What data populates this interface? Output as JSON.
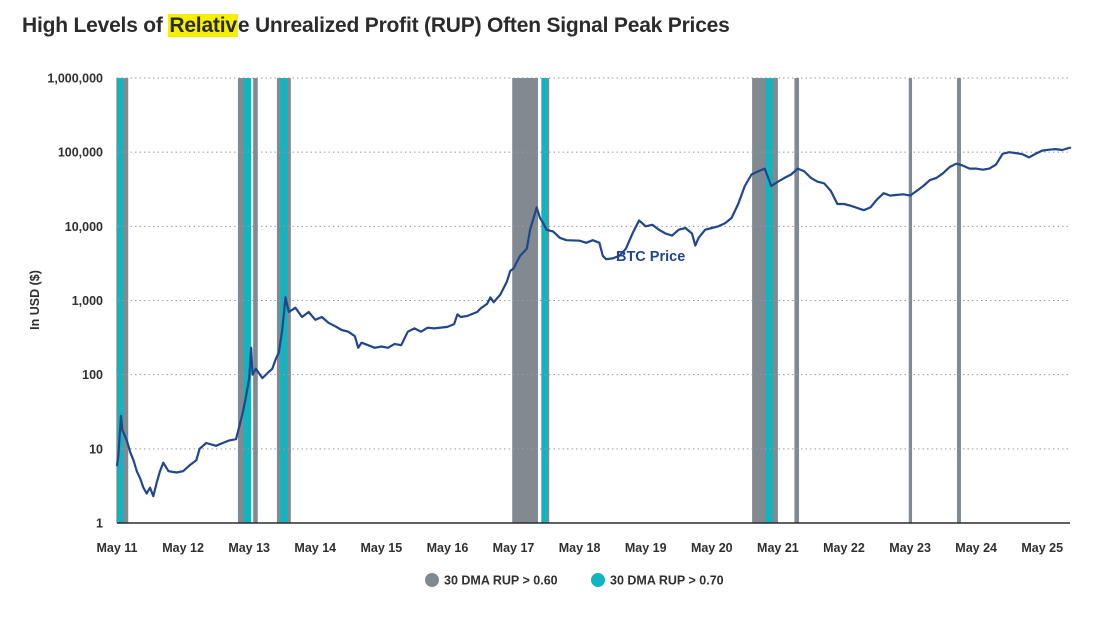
{
  "title": {
    "before": "High Levels of ",
    "highlight": "Relativ",
    "after": "e Unrealized Profit (RUP) Often Signal Peak Prices"
  },
  "chart_data": {
    "type": "line",
    "yscale": "log",
    "ylim": [
      1,
      1000000
    ],
    "xlim": [
      2011.0,
      2025.42
    ],
    "ylabel": "In USD ($)",
    "xlabel": "",
    "grid": true,
    "y_ticks": [
      {
        "value": 1,
        "label": "1"
      },
      {
        "value": 10,
        "label": "10"
      },
      {
        "value": 100,
        "label": "100"
      },
      {
        "value": 1000,
        "label": "1,000"
      },
      {
        "value": 10000,
        "label": "10,000"
      },
      {
        "value": 100000,
        "label": "100,000"
      },
      {
        "value": 1000000,
        "label": "1,000,000"
      }
    ],
    "x_ticks": [
      {
        "value": 2011.0,
        "label": "May 11"
      },
      {
        "value": 2012.0,
        "label": "May 12"
      },
      {
        "value": 2013.0,
        "label": "May 13"
      },
      {
        "value": 2014.0,
        "label": "May 14"
      },
      {
        "value": 2015.0,
        "label": "May 15"
      },
      {
        "value": 2016.0,
        "label": "May 16"
      },
      {
        "value": 2017.0,
        "label": "May 17"
      },
      {
        "value": 2018.0,
        "label": "May 18"
      },
      {
        "value": 2019.0,
        "label": "May 19"
      },
      {
        "value": 2020.0,
        "label": "May 20"
      },
      {
        "value": 2021.0,
        "label": "May 21"
      },
      {
        "value": 2022.0,
        "label": "May 22"
      },
      {
        "value": 2023.0,
        "label": "May 23"
      },
      {
        "value": 2024.0,
        "label": "May 24"
      },
      {
        "value": 2025.0,
        "label": "May 25"
      }
    ],
    "series": [
      {
        "name": "BTC Price",
        "color": "#20468c",
        "points": [
          [
            2011.0,
            6
          ],
          [
            2011.02,
            8
          ],
          [
            2011.04,
            15
          ],
          [
            2011.06,
            28
          ],
          [
            2011.08,
            18
          ],
          [
            2011.12,
            15
          ],
          [
            2011.16,
            12
          ],
          [
            2011.2,
            9
          ],
          [
            2011.25,
            7
          ],
          [
            2011.3,
            5
          ],
          [
            2011.35,
            4
          ],
          [
            2011.4,
            3
          ],
          [
            2011.45,
            2.5
          ],
          [
            2011.5,
            3
          ],
          [
            2011.55,
            2.3
          ],
          [
            2011.6,
            3.5
          ],
          [
            2011.65,
            5
          ],
          [
            2011.7,
            6.5
          ],
          [
            2011.78,
            5
          ],
          [
            2011.9,
            4.8
          ],
          [
            2012.0,
            5
          ],
          [
            2012.1,
            6
          ],
          [
            2012.2,
            7
          ],
          [
            2012.25,
            10
          ],
          [
            2012.35,
            12
          ],
          [
            2012.5,
            11
          ],
          [
            2012.6,
            12
          ],
          [
            2012.7,
            13
          ],
          [
            2012.8,
            13.5
          ],
          [
            2012.85,
            20
          ],
          [
            2012.9,
            30
          ],
          [
            2012.95,
            50
          ],
          [
            2013.0,
            90
          ],
          [
            2013.03,
            230
          ],
          [
            2013.05,
            100
          ],
          [
            2013.1,
            120
          ],
          [
            2013.2,
            90
          ],
          [
            2013.3,
            110
          ],
          [
            2013.35,
            120
          ],
          [
            2013.4,
            160
          ],
          [
            2013.45,
            200
          ],
          [
            2013.5,
            400
          ],
          [
            2013.55,
            1100
          ],
          [
            2013.6,
            700
          ],
          [
            2013.7,
            800
          ],
          [
            2013.8,
            600
          ],
          [
            2013.9,
            700
          ],
          [
            2014.0,
            550
          ],
          [
            2014.1,
            600
          ],
          [
            2014.2,
            500
          ],
          [
            2014.3,
            450
          ],
          [
            2014.4,
            400
          ],
          [
            2014.5,
            380
          ],
          [
            2014.6,
            330
          ],
          [
            2014.65,
            230
          ],
          [
            2014.7,
            270
          ],
          [
            2014.8,
            250
          ],
          [
            2014.9,
            230
          ],
          [
            2015.0,
            240
          ],
          [
            2015.1,
            230
          ],
          [
            2015.2,
            260
          ],
          [
            2015.3,
            250
          ],
          [
            2015.4,
            380
          ],
          [
            2015.5,
            420
          ],
          [
            2015.6,
            380
          ],
          [
            2015.7,
            430
          ],
          [
            2015.8,
            420
          ],
          [
            2016.0,
            440
          ],
          [
            2016.1,
            480
          ],
          [
            2016.15,
            650
          ],
          [
            2016.2,
            600
          ],
          [
            2016.3,
            620
          ],
          [
            2016.45,
            700
          ],
          [
            2016.5,
            780
          ],
          [
            2016.6,
            900
          ],
          [
            2016.65,
            1100
          ],
          [
            2016.7,
            950
          ],
          [
            2016.8,
            1200
          ],
          [
            2016.9,
            1800
          ],
          [
            2016.95,
            2500
          ],
          [
            2017.0,
            2700
          ],
          [
            2017.1,
            4000
          ],
          [
            2017.2,
            5000
          ],
          [
            2017.25,
            9000
          ],
          [
            2017.35,
            18000
          ],
          [
            2017.4,
            13000
          ],
          [
            2017.45,
            11000
          ],
          [
            2017.5,
            9000
          ],
          [
            2017.6,
            8500
          ],
          [
            2017.7,
            7000
          ],
          [
            2017.8,
            6500
          ],
          [
            2018.0,
            6400
          ],
          [
            2018.1,
            6000
          ],
          [
            2018.2,
            6500
          ],
          [
            2018.3,
            6000
          ],
          [
            2018.35,
            4000
          ],
          [
            2018.4,
            3600
          ],
          [
            2018.5,
            3700
          ],
          [
            2018.6,
            4000
          ],
          [
            2018.7,
            5000
          ],
          [
            2018.8,
            8000
          ],
          [
            2018.9,
            12000
          ],
          [
            2019.0,
            10000
          ],
          [
            2019.1,
            10500
          ],
          [
            2019.2,
            9000
          ],
          [
            2019.3,
            8000
          ],
          [
            2019.4,
            7500
          ],
          [
            2019.5,
            9000
          ],
          [
            2019.6,
            9500
          ],
          [
            2019.7,
            8000
          ],
          [
            2019.75,
            5500
          ],
          [
            2019.8,
            7000
          ],
          [
            2019.9,
            9000
          ],
          [
            2020.0,
            9500
          ],
          [
            2020.1,
            10000
          ],
          [
            2020.2,
            11000
          ],
          [
            2020.3,
            13000
          ],
          [
            2020.4,
            20000
          ],
          [
            2020.5,
            35000
          ],
          [
            2020.6,
            50000
          ],
          [
            2020.7,
            55000
          ],
          [
            2020.8,
            60000
          ],
          [
            2020.9,
            35000
          ],
          [
            2021.0,
            40000
          ],
          [
            2021.1,
            45000
          ],
          [
            2021.2,
            50000
          ],
          [
            2021.3,
            60000
          ],
          [
            2021.4,
            55000
          ],
          [
            2021.5,
            45000
          ],
          [
            2021.6,
            40000
          ],
          [
            2021.7,
            38000
          ],
          [
            2021.8,
            30000
          ],
          [
            2021.9,
            20000
          ],
          [
            2022.0,
            20000
          ],
          [
            2022.1,
            19000
          ],
          [
            2022.3,
            16500
          ],
          [
            2022.4,
            18000
          ],
          [
            2022.5,
            23000
          ],
          [
            2022.6,
            28000
          ],
          [
            2022.7,
            26000
          ],
          [
            2022.8,
            26500
          ],
          [
            2022.9,
            27000
          ],
          [
            2023.0,
            26000
          ],
          [
            2023.1,
            30000
          ],
          [
            2023.2,
            35000
          ],
          [
            2023.3,
            42000
          ],
          [
            2023.4,
            45000
          ],
          [
            2023.5,
            52000
          ],
          [
            2023.6,
            63000
          ],
          [
            2023.7,
            70000
          ],
          [
            2023.8,
            66000
          ],
          [
            2023.9,
            60000
          ],
          [
            2024.0,
            60000
          ],
          [
            2024.1,
            58000
          ],
          [
            2024.2,
            60000
          ],
          [
            2024.3,
            68000
          ],
          [
            2024.4,
            95000
          ],
          [
            2024.5,
            100000
          ],
          [
            2024.6,
            97000
          ],
          [
            2024.7,
            94000
          ],
          [
            2024.8,
            85000
          ],
          [
            2024.9,
            95000
          ],
          [
            2025.0,
            105000
          ],
          [
            2025.1,
            108000
          ],
          [
            2025.2,
            110000
          ],
          [
            2025.3,
            107000
          ],
          [
            2025.42,
            115000
          ]
        ]
      }
    ],
    "bands": {
      "rup_060": {
        "name": "30 DMA RUP > 0.60",
        "color": "#808a90",
        "ranges": [
          [
            2010.99,
            2011.17
          ],
          [
            2012.83,
            2013.0
          ],
          [
            2013.06,
            2013.13
          ],
          [
            2013.42,
            2013.63
          ],
          [
            2016.98,
            2017.37
          ],
          [
            2017.42,
            2017.54
          ],
          [
            2020.61,
            2021.0
          ],
          [
            2021.25,
            2021.32
          ],
          [
            2022.98,
            2023.03
          ],
          [
            2023.71,
            2023.77
          ]
        ]
      },
      "rup_070": {
        "name": "30 DMA RUP > 0.70",
        "color": "#12b4c0",
        "ranges": [
          [
            2011.0,
            2011.1
          ],
          [
            2012.92,
            2013.03
          ],
          [
            2013.47,
            2013.58
          ],
          [
            2017.43,
            2017.51
          ],
          [
            2020.81,
            2020.92
          ]
        ]
      }
    },
    "annotations": [
      {
        "text": "BTC Price",
        "x": 2018.55,
        "y": 3400
      }
    ],
    "legend": {
      "position": "bottom-center",
      "entries": [
        {
          "label": "30 DMA RUP > 0.60",
          "color": "#808a90"
        },
        {
          "label": "30 DMA RUP > 0.70",
          "color": "#12b4c0"
        }
      ]
    }
  }
}
